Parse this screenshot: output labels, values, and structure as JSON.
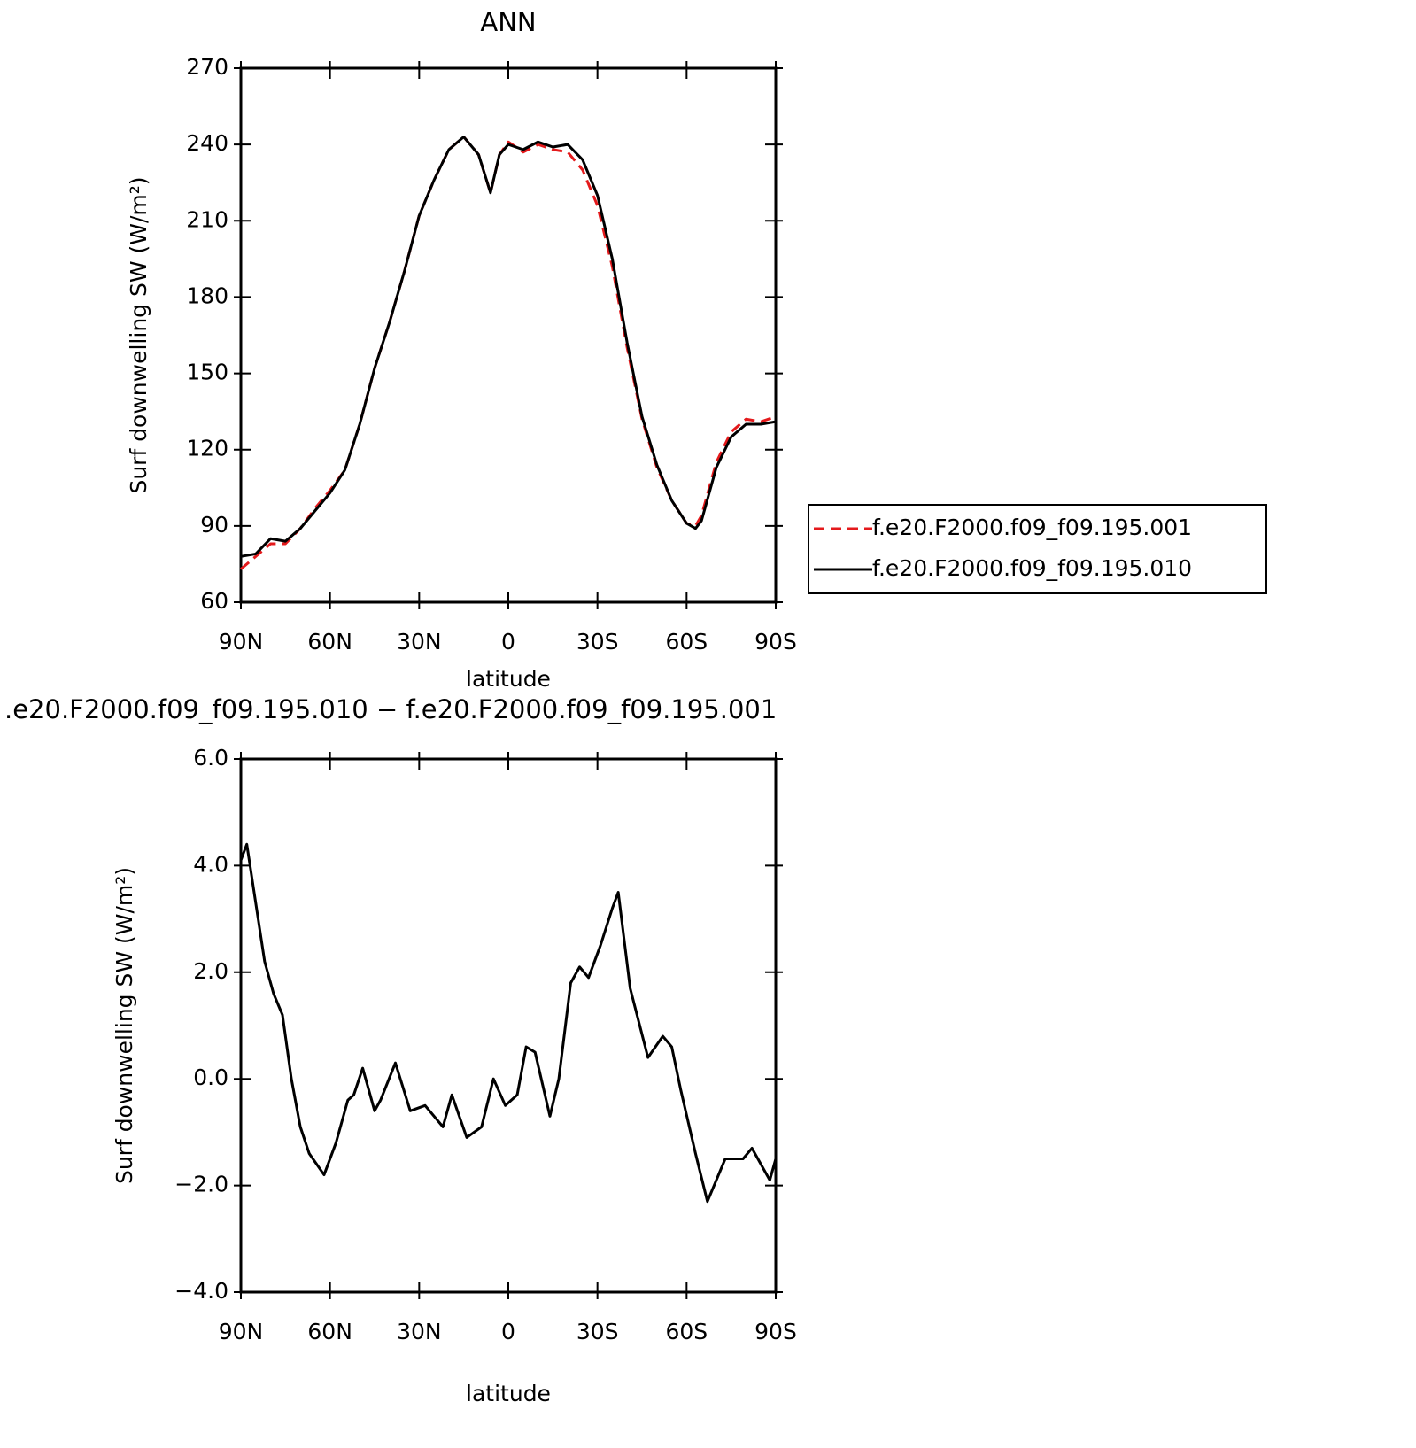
{
  "chart_data": [
    {
      "type": "line",
      "title": "ANN",
      "xlabel": "latitude",
      "ylabel": "Surf downwelling SW (W/m²)",
      "x": [
        90,
        85,
        80,
        75,
        70,
        65,
        60,
        55,
        50,
        45,
        40,
        35,
        30,
        25,
        20,
        15,
        10,
        6,
        3,
        0,
        -5,
        -10,
        -15,
        -20,
        -25,
        -30,
        -35,
        -40,
        -45,
        -50,
        -55,
        -60,
        -63,
        -65,
        -70,
        -75,
        -80,
        -85,
        -90
      ],
      "xlim": [
        90,
        -90
      ],
      "xticks": [
        {
          "value": 90,
          "label": "90N"
        },
        {
          "value": 60,
          "label": "60N"
        },
        {
          "value": 30,
          "label": "30N"
        },
        0,
        {
          "value": -30,
          "label": "30S"
        },
        {
          "value": -60,
          "label": "60S"
        },
        {
          "value": -90,
          "label": "90S"
        }
      ],
      "ylim": [
        60,
        270
      ],
      "yticks": [
        60,
        90,
        120,
        150,
        180,
        210,
        240,
        270
      ],
      "legend": "right",
      "series": [
        {
          "name": "f.e20.F2000.f09_f09.195.001",
          "color": "#e41a1c",
          "dashed": true,
          "values": [
            73,
            78,
            83,
            83,
            89,
            97,
            104,
            112,
            130,
            152,
            170,
            190,
            212,
            226,
            238,
            243,
            236,
            221,
            236,
            241,
            237,
            240,
            238,
            237,
            230,
            216,
            192,
            160,
            132,
            113,
            100,
            91,
            90,
            94,
            115,
            127,
            132,
            131,
            133
          ]
        },
        {
          "name": "f.e20.F2000.f09_f09.195.010",
          "color": "#000000",
          "dashed": false,
          "values": [
            78,
            79,
            85,
            84,
            89,
            96,
            103,
            112,
            130,
            152,
            170,
            190,
            212,
            226,
            238,
            243,
            236,
            221,
            236,
            240,
            238,
            241,
            239,
            240,
            234,
            220,
            195,
            162,
            133,
            114,
            100,
            91,
            89,
            92,
            113,
            125,
            130,
            130,
            131
          ]
        }
      ]
    },
    {
      "type": "line",
      "title": ".e20.F2000.f09_f09.195.010 − f.e20.F2000.f09_f09.195.001",
      "xlabel": "latitude",
      "ylabel": "Surf downwelling SW (W/m²)",
      "x": [
        90,
        88,
        85,
        82,
        79,
        76,
        73,
        70,
        67,
        62,
        58,
        54,
        52,
        49,
        45,
        43,
        38,
        33,
        28,
        22,
        19,
        14,
        9,
        5,
        1,
        -3,
        -6,
        -9,
        -14,
        -17,
        -21,
        -24,
        -27,
        -31,
        -35,
        -37,
        -41,
        -47,
        -52,
        -55,
        -58,
        -63,
        -67,
        -73,
        -79,
        -82,
        -88,
        -90
      ],
      "xlim": [
        90,
        -90
      ],
      "xticks": [
        {
          "value": 90,
          "label": "90N"
        },
        {
          "value": 60,
          "label": "60N"
        },
        {
          "value": 30,
          "label": "30N"
        },
        0,
        {
          "value": -30,
          "label": "30S"
        },
        {
          "value": -60,
          "label": "60S"
        },
        {
          "value": -90,
          "label": "90S"
        }
      ],
      "ylim": [
        -4,
        6
      ],
      "yticks": [
        {
          "value": -4,
          "label": "−4.0"
        },
        {
          "value": -2,
          "label": "−2.0"
        },
        {
          "value": 0,
          "label": "0.0"
        },
        {
          "value": 2,
          "label": "2.0"
        },
        {
          "value": 4,
          "label": "4.0"
        },
        {
          "value": 6,
          "label": "6.0"
        }
      ],
      "color": "#000000",
      "values": [
        4.1,
        4.4,
        3.3,
        2.2,
        1.6,
        1.2,
        0,
        -0.9,
        -1.4,
        -1.8,
        -1.2,
        -0.4,
        -0.3,
        0.2,
        -0.6,
        -0.4,
        0.3,
        -0.6,
        -0.5,
        -0.9,
        -0.3,
        -1.1,
        -0.9,
        0,
        -0.5,
        -0.3,
        0.6,
        0.5,
        -0.7,
        0,
        1.8,
        2.1,
        1.9,
        2.5,
        3.2,
        3.5,
        1.7,
        0.4,
        0.8,
        0.6,
        -0.2,
        -1.4,
        -2.3,
        -1.5,
        -1.5,
        -1.3,
        -1.9,
        -1.5
      ]
    }
  ]
}
